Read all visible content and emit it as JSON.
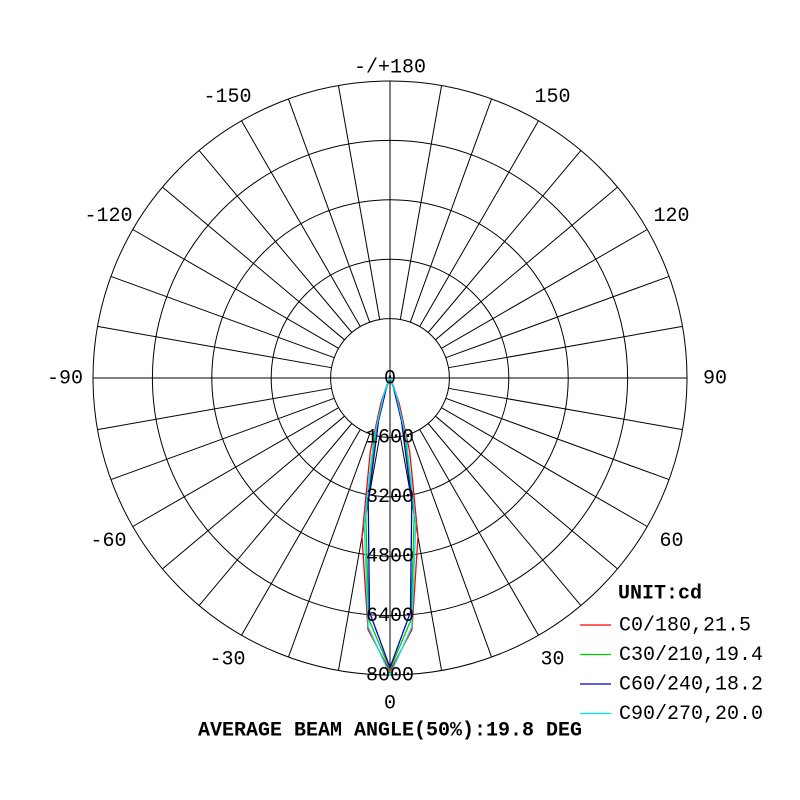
{
  "chart_data": {
    "type": "polar",
    "annotation": "AVERAGE BEAM ANGLE(50%):19.8 DEG",
    "legend_title": "UNIT:cd",
    "legend_position": "lower right",
    "rlim": [
      0,
      8000
    ],
    "rticks": [
      0,
      1600,
      3200,
      4800,
      6400,
      8000
    ],
    "angle_ticks": [
      {
        "value": 180,
        "label": "-/+180"
      },
      150,
      120,
      90,
      60,
      30,
      0,
      -30,
      -60,
      -90,
      -120,
      -150
    ],
    "angle_grid_step": 10,
    "x": [
      -30,
      -25,
      -20,
      -15,
      -10,
      -5,
      0,
      5,
      10,
      15,
      20,
      25,
      30
    ],
    "series": [
      {
        "name": "C0/180,21.5",
        "color": "#ff0000",
        "values": [
          30,
          180,
          720,
          2050,
          4340,
          6800,
          7900,
          6800,
          4340,
          2050,
          720,
          180,
          30
        ]
      },
      {
        "name": "C30/210,19.4",
        "color": "#00cc00",
        "values": [
          10,
          80,
          415,
          1500,
          3760,
          6530,
          7850,
          6530,
          3760,
          1500,
          415,
          80,
          10
        ]
      },
      {
        "name": "C60/240,18.2",
        "color": "#0000cc",
        "values": [
          5,
          40,
          275,
          1190,
          3380,
          6330,
          7800,
          6330,
          3380,
          1190,
          275,
          40,
          5
        ]
      },
      {
        "name": "C90/270,20.0",
        "color": "#00e5ee",
        "values": [
          15,
          105,
          500,
          1680,
          4000,
          6730,
          8000,
          6730,
          4000,
          1680,
          500,
          105,
          15
        ]
      }
    ]
  }
}
